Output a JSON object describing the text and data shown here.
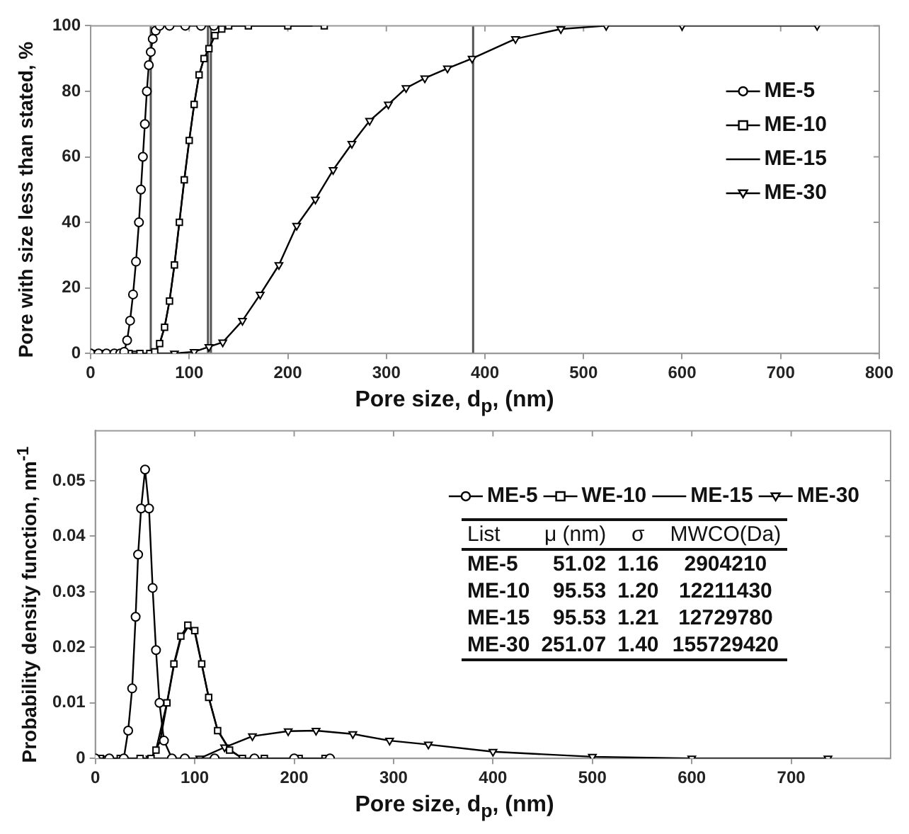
{
  "chart_data": [
    {
      "type": "line",
      "xlabel": "Pore size, d$_{p}$, (nm)",
      "ylabel": "Pore with size less than stated, %",
      "xlim": [
        0,
        800
      ],
      "xticks": [
        0,
        100,
        200,
        300,
        400,
        500,
        600,
        700,
        800
      ],
      "ylim": [
        0,
        100
      ],
      "yticks": [
        0,
        20,
        40,
        60,
        80,
        100
      ],
      "legend": "top right",
      "ref_lines": [
        {
          "axis": "x",
          "value": 61,
          "color": "#555555"
        },
        {
          "axis": "x",
          "value": 119,
          "color": "#555555"
        },
        {
          "axis": "x",
          "value": 122,
          "color": "#555555"
        },
        {
          "axis": "x",
          "value": 388,
          "color": "#555555"
        }
      ],
      "series": [
        {
          "name": "ME-5",
          "color": "#000000",
          "marker": "circle",
          "x": [
            0,
            8,
            16,
            24,
            30,
            34,
            37,
            40,
            43,
            46,
            49,
            51,
            53,
            55,
            57,
            59,
            61,
            63,
            66,
            70,
            80,
            96,
            112,
            125
          ],
          "values": [
            0,
            0,
            0,
            0,
            0,
            0.5,
            4,
            10,
            18,
            28,
            40,
            50,
            60,
            70,
            80,
            88,
            92,
            96,
            98.5,
            100,
            100,
            100,
            100,
            100
          ]
        },
        {
          "name": "ME-10",
          "color": "#000000",
          "marker": "square",
          "x": [
            3,
            15,
            27,
            39,
            50,
            60,
            65,
            70,
            75,
            80,
            85,
            90,
            95,
            100,
            105,
            110,
            115,
            120,
            126,
            133,
            140,
            160,
            200,
            237
          ],
          "values": [
            0,
            0,
            0,
            0,
            0,
            0,
            0.5,
            3,
            8,
            16,
            27,
            40,
            53,
            65,
            76,
            85,
            90,
            93,
            97,
            99,
            100,
            100,
            100,
            100
          ]
        },
        {
          "name": "ME-15",
          "color": "#000000",
          "marker": "none",
          "x": [
            10,
            20,
            40,
            60,
            65,
            70,
            75,
            80,
            85,
            90,
            95,
            100,
            105,
            110,
            115,
            120,
            126,
            133,
            140,
            160,
            200,
            225
          ],
          "values": [
            0,
            0,
            0,
            0,
            0.5,
            3,
            8,
            16,
            27,
            40,
            53,
            65,
            76,
            85,
            90,
            93,
            97,
            99,
            100,
            100,
            100,
            100
          ]
        },
        {
          "name": "ME-30",
          "color": "#000000",
          "marker": "triangle",
          "x": [
            6,
            45,
            85,
            105,
            120,
            134,
            154,
            172,
            191,
            209,
            228,
            246,
            265,
            283,
            302,
            320,
            339,
            362,
            387,
            431,
            477,
            523,
            600,
            737
          ],
          "values": [
            0,
            0,
            0,
            0.5,
            2,
            3.4,
            10,
            18,
            27,
            39,
            47,
            56,
            64,
            71,
            76,
            81,
            84,
            87,
            90,
            96,
            99,
            100,
            100,
            100
          ]
        }
      ]
    },
    {
      "type": "line",
      "xlabel": "Pore size, d$_{p}$, (nm)",
      "ylabel": "Probability density function, nm$^{-1}$",
      "xlim": [
        0,
        800
      ],
      "xticks": [
        0,
        100,
        200,
        300,
        400,
        500,
        600,
        700
      ],
      "ylim": [
        0,
        0.059
      ],
      "yticks": [
        0,
        0.01,
        0.02,
        0.03,
        0.04,
        0.05
      ],
      "legend": "top",
      "annotations": [
        "List",
        "μ (nm)",
        "σ",
        "MWCO(Da)",
        "ME-5",
        "51.02",
        "1.16",
        "2904210",
        "ME-10",
        "95.53",
        "1.20",
        "12211430",
        "ME-15",
        "95.53",
        "1.21",
        "12729780",
        "ME-30",
        "251.07",
        "1.40",
        "155729420"
      ],
      "series": [
        {
          "name": "ME-5",
          "color": "#000000",
          "marker": "circle",
          "x": [
            0,
            14,
            28.6,
            33,
            37,
            40.5,
            43,
            46,
            50,
            54,
            57.6,
            61,
            64.5,
            69,
            77,
            90,
            120,
            160,
            200,
            236
          ],
          "values": [
            0,
            0,
            0,
            0.005,
            0.0126,
            0.0255,
            0.0367,
            0.045,
            0.052,
            0.045,
            0.0307,
            0.0195,
            0.01,
            0.0032,
            0,
            0,
            0,
            0,
            0,
            0
          ]
        },
        {
          "name": "WE-10",
          "color": "#000000",
          "marker": "square",
          "x": [
            5,
            25,
            45,
            56,
            61,
            72,
            79,
            86,
            93,
            100,
            107,
            114,
            123,
            135,
            148,
            170,
            205,
            231
          ],
          "values": [
            0,
            0,
            0,
            0,
            0.0015,
            0.01,
            0.017,
            0.022,
            0.024,
            0.023,
            0.017,
            0.011,
            0.005,
            0.0015,
            0,
            0,
            0,
            0
          ]
        },
        {
          "name": "ME-15",
          "color": "#000000",
          "marker": "none",
          "x": [
            5,
            40,
            56,
            65,
            72,
            79,
            86,
            93,
            100,
            107,
            114,
            123,
            135,
            148,
            180,
            231
          ],
          "values": [
            0,
            0,
            0,
            0.003,
            0.0098,
            0.0167,
            0.0216,
            0.0236,
            0.0227,
            0.0169,
            0.011,
            0.0051,
            0.0016,
            0,
            0,
            0
          ]
        },
        {
          "name": "ME-30",
          "color": "#000000",
          "marker": "triangle",
          "x": [
            10,
            55,
            105,
            130,
            158,
            194,
            222,
            259,
            296,
            335,
            400,
            500,
            600,
            737
          ],
          "values": [
            0,
            0,
            0,
            0.002,
            0.004,
            0.0049,
            0.005,
            0.0044,
            0.0032,
            0.0025,
            0.0012,
            0.0003,
            0,
            0
          ]
        }
      ]
    }
  ]
}
